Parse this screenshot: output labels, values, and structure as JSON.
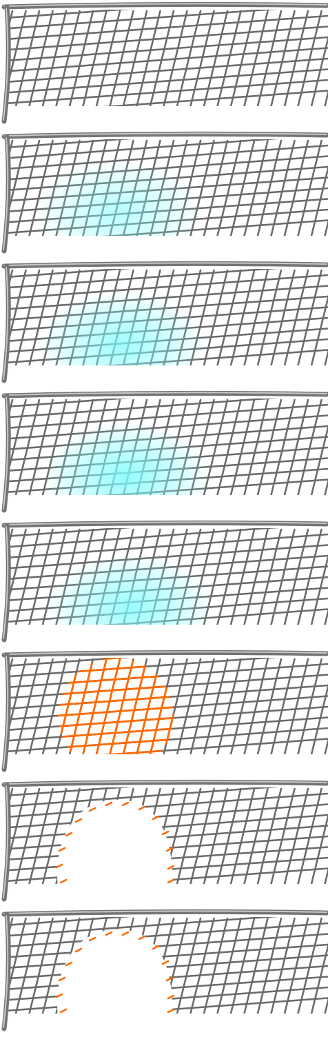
{
  "sprite_sheet": {
    "frame_count": 8,
    "colors": {
      "background": "#ffffff",
      "net_mesh": "#6b6b6b",
      "post_outer": "#747474",
      "post_highlight": "#c8c8c8",
      "glow": "#7ffcff",
      "burn": "#ff6a00"
    },
    "frames": [
      {
        "state": "idle",
        "glow": 0,
        "burn": false,
        "hole": false
      },
      {
        "state": "glow",
        "glow": 0.55,
        "burn": false,
        "hole": false
      },
      {
        "state": "glow",
        "glow": 0.75,
        "burn": false,
        "hole": false
      },
      {
        "state": "glow",
        "glow": 0.85,
        "burn": false,
        "hole": false
      },
      {
        "state": "glow",
        "glow": 0.8,
        "burn": false,
        "hole": false
      },
      {
        "state": "burn",
        "glow": 0,
        "burn": true,
        "hole": false
      },
      {
        "state": "hole",
        "glow": 0,
        "burn": false,
        "hole": true,
        "embers": true
      },
      {
        "state": "hole",
        "glow": 0,
        "burn": false,
        "hole": true,
        "embers": true
      }
    ]
  }
}
